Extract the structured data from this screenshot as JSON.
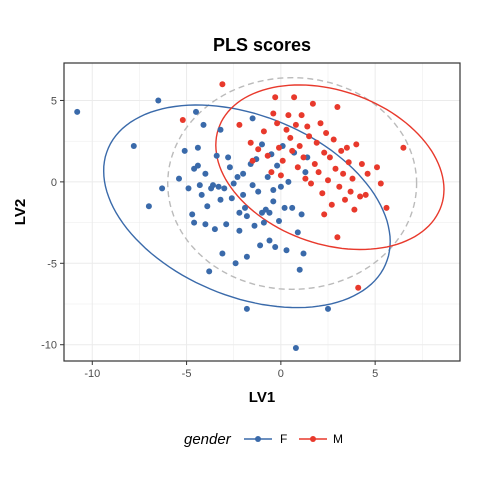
{
  "chart_data": {
    "type": "scatter",
    "title": "PLS scores",
    "xlabel": "LV1",
    "ylabel": "LV2",
    "xlim": [
      -11.5,
      9.5
    ],
    "ylim": [
      -11,
      7.3
    ],
    "xticks": [
      -10,
      -5,
      0,
      5
    ],
    "yticks": [
      -10,
      -5,
      0,
      5
    ],
    "grid": true,
    "legend": {
      "title": "gender",
      "placement": "bottom"
    },
    "overall_ellipse": {
      "cx": 0.6,
      "cy": -0.1,
      "rx": 6.6,
      "ry": 6.5,
      "angle_deg": 0,
      "style": "dashed",
      "color": "#bbbbbb"
    },
    "series": [
      {
        "name": "F",
        "color": "#3a6aaa",
        "ellipse": {
          "cx": -1.8,
          "cy": -1.5,
          "rx": 8.2,
          "ry": 5.4,
          "angle_deg": -30
        },
        "points": [
          [
            -10.8,
            4.3
          ],
          [
            -7.8,
            2.2
          ],
          [
            -7.0,
            -1.5
          ],
          [
            -6.5,
            5.0
          ],
          [
            -6.3,
            -0.4
          ],
          [
            -5.4,
            0.2
          ],
          [
            -5.1,
            1.9
          ],
          [
            -4.9,
            -0.4
          ],
          [
            -4.7,
            -2.0
          ],
          [
            -4.6,
            -2.5
          ],
          [
            -4.6,
            0.8
          ],
          [
            -4.5,
            4.3
          ],
          [
            -4.4,
            2.1
          ],
          [
            -4.4,
            1.0
          ],
          [
            -4.3,
            -0.2
          ],
          [
            -4.2,
            -0.8
          ],
          [
            -4.1,
            3.5
          ],
          [
            -4.0,
            0.5
          ],
          [
            -4.0,
            -2.6
          ],
          [
            -3.9,
            -1.5
          ],
          [
            -3.8,
            -5.5
          ],
          [
            -3.7,
            -0.4
          ],
          [
            -3.6,
            -0.2
          ],
          [
            -3.5,
            -2.9
          ],
          [
            -3.4,
            1.6
          ],
          [
            -3.3,
            -0.3
          ],
          [
            -3.2,
            -1.1
          ],
          [
            -3.2,
            3.2
          ],
          [
            -3.1,
            -4.4
          ],
          [
            -3.0,
            -0.4
          ],
          [
            -2.9,
            -2.6
          ],
          [
            -2.8,
            1.5
          ],
          [
            -2.7,
            0.9
          ],
          [
            -2.6,
            -1.0
          ],
          [
            -2.5,
            -0.1
          ],
          [
            -2.4,
            -5.0
          ],
          [
            -2.3,
            0.3
          ],
          [
            -2.2,
            -3.0
          ],
          [
            -2.2,
            -1.9
          ],
          [
            -2.0,
            -0.8
          ],
          [
            -2.0,
            0.5
          ],
          [
            -1.9,
            -1.6
          ],
          [
            -1.8,
            -2.1
          ],
          [
            -1.8,
            -4.6
          ],
          [
            -1.8,
            -7.8
          ],
          [
            -1.6,
            1.1
          ],
          [
            -1.5,
            -0.2
          ],
          [
            -1.5,
            3.9
          ],
          [
            -1.4,
            -2.7
          ],
          [
            -1.3,
            1.4
          ],
          [
            -1.2,
            -0.6
          ],
          [
            -1.1,
            -3.9
          ],
          [
            -1.0,
            -1.9
          ],
          [
            -1.0,
            2.3
          ],
          [
            -0.9,
            -2.5
          ],
          [
            -0.8,
            -1.7
          ],
          [
            -0.7,
            0.3
          ],
          [
            -0.6,
            -1.9
          ],
          [
            -0.6,
            -3.6
          ],
          [
            -0.5,
            1.7
          ],
          [
            -0.4,
            -0.5
          ],
          [
            -0.4,
            -1.2
          ],
          [
            -0.3,
            -4.0
          ],
          [
            -0.2,
            1.0
          ],
          [
            -0.1,
            -2.4
          ],
          [
            0.0,
            -0.3
          ],
          [
            0.1,
            2.2
          ],
          [
            0.2,
            -1.6
          ],
          [
            0.3,
            -4.2
          ],
          [
            0.4,
            0.0
          ],
          [
            0.6,
            -1.6
          ],
          [
            0.7,
            1.8
          ],
          [
            0.8,
            -10.2
          ],
          [
            0.9,
            -3.1
          ],
          [
            1.0,
            -5.4
          ],
          [
            1.1,
            -2.0
          ],
          [
            1.2,
            -4.4
          ],
          [
            1.3,
            0.6
          ],
          [
            1.4,
            1.5
          ],
          [
            2.5,
            -7.8
          ]
        ]
      },
      {
        "name": "M",
        "color": "#e8392c",
        "ellipse": {
          "cx": 2.6,
          "cy": 0.9,
          "rx": 6.4,
          "ry": 4.6,
          "angle_deg": -28
        },
        "points": [
          [
            -5.2,
            3.8
          ],
          [
            -3.1,
            6.0
          ],
          [
            -2.2,
            3.5
          ],
          [
            -1.6,
            2.4
          ],
          [
            -1.5,
            1.3
          ],
          [
            -1.2,
            2.0
          ],
          [
            -0.9,
            3.1
          ],
          [
            -0.7,
            1.6
          ],
          [
            -0.5,
            0.6
          ],
          [
            -0.4,
            4.2
          ],
          [
            -0.3,
            5.2
          ],
          [
            -0.2,
            3.6
          ],
          [
            -0.1,
            2.1
          ],
          [
            0.0,
            0.4
          ],
          [
            0.1,
            1.3
          ],
          [
            0.3,
            3.2
          ],
          [
            0.4,
            4.1
          ],
          [
            0.5,
            2.7
          ],
          [
            0.6,
            1.9
          ],
          [
            0.7,
            5.2
          ],
          [
            0.8,
            3.5
          ],
          [
            0.9,
            0.9
          ],
          [
            1.0,
            2.2
          ],
          [
            1.1,
            4.1
          ],
          [
            1.2,
            1.5
          ],
          [
            1.3,
            0.2
          ],
          [
            1.4,
            3.4
          ],
          [
            1.5,
            2.8
          ],
          [
            1.6,
            -0.1
          ],
          [
            1.7,
            4.8
          ],
          [
            1.8,
            1.1
          ],
          [
            1.9,
            2.4
          ],
          [
            2.0,
            0.6
          ],
          [
            2.1,
            3.6
          ],
          [
            2.2,
            -0.7
          ],
          [
            2.3,
            1.8
          ],
          [
            2.3,
            -2.0
          ],
          [
            2.4,
            3.0
          ],
          [
            2.5,
            0.1
          ],
          [
            2.6,
            1.5
          ],
          [
            2.7,
            -1.4
          ],
          [
            2.8,
            2.6
          ],
          [
            2.9,
            0.8
          ],
          [
            3.0,
            -3.4
          ],
          [
            3.0,
            4.6
          ],
          [
            3.1,
            -0.3
          ],
          [
            3.2,
            1.9
          ],
          [
            3.3,
            0.5
          ],
          [
            3.4,
            -1.1
          ],
          [
            3.5,
            2.1
          ],
          [
            3.6,
            1.2
          ],
          [
            3.7,
            -0.6
          ],
          [
            3.8,
            0.2
          ],
          [
            3.9,
            -1.7
          ],
          [
            4.0,
            2.3
          ],
          [
            4.1,
            -6.5
          ],
          [
            4.2,
            -0.9
          ],
          [
            4.3,
            1.1
          ],
          [
            4.5,
            -0.8
          ],
          [
            4.6,
            0.5
          ],
          [
            5.1,
            0.9
          ],
          [
            5.3,
            -0.1
          ],
          [
            5.6,
            -1.6
          ],
          [
            6.5,
            2.1
          ]
        ]
      }
    ]
  }
}
